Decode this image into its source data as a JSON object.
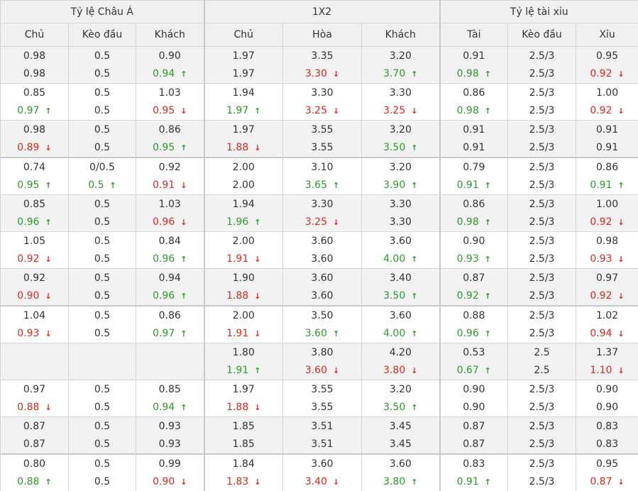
{
  "headers": {
    "groups": [
      "Tỷ lệ Châu Á",
      "1X2",
      "Tỷ lệ tài xỉu"
    ],
    "columns": [
      "Chủ",
      "Kèo đầu",
      "Khách",
      "Chủ",
      "Hòa",
      "Khách",
      "Tài",
      "Kèo đầu",
      "Xỉu"
    ]
  },
  "colors": {
    "up": "#2a9d2a",
    "down": "#e0281e",
    "header_bg": "#f0f0f0",
    "alt_row_bg": "#f2f2f2",
    "border": "#d4d4d4"
  },
  "icons": {
    "up": "arrow-up-icon",
    "down": "arrow-down-icon"
  },
  "rows": [
    {
      "top": [
        "0.98",
        "0.5",
        "0.90",
        "1.97",
        "3.35",
        "3.20",
        "0.91",
        "2.5/3",
        "0.95"
      ],
      "bottom": [
        {
          "v": "0.98"
        },
        {
          "v": "0.5"
        },
        {
          "v": "0.94",
          "d": "up"
        },
        {
          "v": "1.97"
        },
        {
          "v": "3.30",
          "d": "down"
        },
        {
          "v": "3.70",
          "d": "up"
        },
        {
          "v": "0.98",
          "d": "up"
        },
        {
          "v": "2.5/3"
        },
        {
          "v": "0.92",
          "d": "down"
        }
      ]
    },
    {
      "top": [
        "0.85",
        "0.5",
        "1.03",
        "1.94",
        "3.30",
        "3.30",
        "0.86",
        "2.5/3",
        "1.00"
      ],
      "bottom": [
        {
          "v": "0.97",
          "d": "up"
        },
        {
          "v": "0.5"
        },
        {
          "v": "0.95",
          "d": "down"
        },
        {
          "v": "1.97",
          "d": "up"
        },
        {
          "v": "3.25",
          "d": "down"
        },
        {
          "v": "3.25",
          "d": "down"
        },
        {
          "v": "0.98",
          "d": "up"
        },
        {
          "v": "2.5/3"
        },
        {
          "v": "0.92",
          "d": "down"
        }
      ]
    },
    {
      "top": [
        "0.98",
        "0.5",
        "0.86",
        "1.97",
        "3.55",
        "3.20",
        "0.91",
        "2.5/3",
        "0.91"
      ],
      "bottom": [
        {
          "v": "0.89",
          "d": "down"
        },
        {
          "v": "0.5"
        },
        {
          "v": "0.95",
          "d": "up"
        },
        {
          "v": "1.88",
          "d": "down"
        },
        {
          "v": "3.55"
        },
        {
          "v": "3.50",
          "d": "up"
        },
        {
          "v": "0.91"
        },
        {
          "v": "2.5/3"
        },
        {
          "v": "0.91"
        }
      ]
    },
    {
      "top": [
        "0.74",
        "0/0.5",
        "0.92",
        "2.00",
        "3.10",
        "3.20",
        "0.79",
        "2.5/3",
        "0.86"
      ],
      "bottom": [
        {
          "v": "0.95",
          "d": "up"
        },
        {
          "v": "0.5",
          "d": "up"
        },
        {
          "v": "0.91",
          "d": "down"
        },
        {
          "v": "2.00"
        },
        {
          "v": "3.65",
          "d": "up"
        },
        {
          "v": "3.90",
          "d": "up"
        },
        {
          "v": "0.91",
          "d": "up"
        },
        {
          "v": "2.5/3"
        },
        {
          "v": "0.91",
          "d": "up"
        }
      ]
    },
    {
      "top": [
        "0.85",
        "0.5",
        "1.03",
        "1.94",
        "3.30",
        "3.30",
        "0.86",
        "2.5/3",
        "1.00"
      ],
      "bottom": [
        {
          "v": "0.96",
          "d": "up"
        },
        {
          "v": "0.5"
        },
        {
          "v": "0.96",
          "d": "down"
        },
        {
          "v": "1.96",
          "d": "up"
        },
        {
          "v": "3.25",
          "d": "down"
        },
        {
          "v": "3.30"
        },
        {
          "v": "0.98",
          "d": "up"
        },
        {
          "v": "2.5/3"
        },
        {
          "v": "0.92",
          "d": "down"
        }
      ]
    },
    {
      "top": [
        "1.05",
        "0.5",
        "0.84",
        "2.00",
        "3.60",
        "3.60",
        "0.90",
        "2.5/3",
        "0.98"
      ],
      "bottom": [
        {
          "v": "0.92",
          "d": "down"
        },
        {
          "v": "0.5"
        },
        {
          "v": "0.96",
          "d": "up"
        },
        {
          "v": "1.91",
          "d": "down"
        },
        {
          "v": "3.60"
        },
        {
          "v": "4.00",
          "d": "up"
        },
        {
          "v": "0.93",
          "d": "up"
        },
        {
          "v": "2.5/3"
        },
        {
          "v": "0.93",
          "d": "down"
        }
      ]
    },
    {
      "top": [
        "0.92",
        "0.5",
        "0.94",
        "1.90",
        "3.60",
        "3.40",
        "0.87",
        "2.5/3",
        "0.97"
      ],
      "bottom": [
        {
          "v": "0.90",
          "d": "down"
        },
        {
          "v": "0.5"
        },
        {
          "v": "0.96",
          "d": "up"
        },
        {
          "v": "1.88",
          "d": "down"
        },
        {
          "v": "3.60"
        },
        {
          "v": "3.50",
          "d": "up"
        },
        {
          "v": "0.92",
          "d": "up"
        },
        {
          "v": "2.5/3"
        },
        {
          "v": "0.92",
          "d": "down"
        }
      ]
    },
    {
      "top": [
        "1.04",
        "0.5",
        "0.86",
        "2.00",
        "3.50",
        "3.60",
        "0.88",
        "2.5/3",
        "1.02"
      ],
      "bottom": [
        {
          "v": "0.93",
          "d": "down"
        },
        {
          "v": "0.5"
        },
        {
          "v": "0.97",
          "d": "up"
        },
        {
          "v": "1.91",
          "d": "down"
        },
        {
          "v": "3.60",
          "d": "up"
        },
        {
          "v": "4.00",
          "d": "up"
        },
        {
          "v": "0.96",
          "d": "up"
        },
        {
          "v": "2.5/3"
        },
        {
          "v": "0.94",
          "d": "down"
        }
      ]
    },
    {
      "top": [
        "",
        "",
        "",
        "1.80",
        "3.80",
        "4.20",
        "0.53",
        "2.5",
        "1.37"
      ],
      "bottom": [
        {
          "v": ""
        },
        {
          "v": ""
        },
        {
          "v": ""
        },
        {
          "v": "1.91",
          "d": "up"
        },
        {
          "v": "3.60",
          "d": "down"
        },
        {
          "v": "3.80",
          "d": "down"
        },
        {
          "v": "0.67",
          "d": "up"
        },
        {
          "v": "2.5"
        },
        {
          "v": "1.10",
          "d": "down"
        }
      ]
    },
    {
      "top": [
        "0.97",
        "0.5",
        "0.85",
        "1.97",
        "3.55",
        "3.20",
        "0.90",
        "2.5/3",
        "0.90"
      ],
      "bottom": [
        {
          "v": "0.88",
          "d": "down"
        },
        {
          "v": "0.5"
        },
        {
          "v": "0.94",
          "d": "up"
        },
        {
          "v": "1.88",
          "d": "down"
        },
        {
          "v": "3.55"
        },
        {
          "v": "3.50",
          "d": "up"
        },
        {
          "v": "0.90"
        },
        {
          "v": "2.5/3"
        },
        {
          "v": "0.90"
        }
      ]
    },
    {
      "top": [
        "0.87",
        "0.5",
        "0.93",
        "1.85",
        "3.51",
        "3.45",
        "0.87",
        "2.5/3",
        "0.83"
      ],
      "bottom": [
        {
          "v": "0.87"
        },
        {
          "v": "0.5"
        },
        {
          "v": "0.93"
        },
        {
          "v": "1.85"
        },
        {
          "v": "3.51"
        },
        {
          "v": "3.45"
        },
        {
          "v": "0.87"
        },
        {
          "v": "2.5/3"
        },
        {
          "v": "0.83"
        }
      ]
    },
    {
      "top": [
        "0.80",
        "0.5",
        "0.99",
        "1.84",
        "3.60",
        "3.60",
        "0.83",
        "2.5/3",
        "0.95"
      ],
      "bottom": [
        {
          "v": "0.88",
          "d": "up"
        },
        {
          "v": "0.5"
        },
        {
          "v": "0.90",
          "d": "down"
        },
        {
          "v": "1.83",
          "d": "down"
        },
        {
          "v": "3.40",
          "d": "down"
        },
        {
          "v": "3.80",
          "d": "up"
        },
        {
          "v": "0.91",
          "d": "up"
        },
        {
          "v": "2.5/3"
        },
        {
          "v": "0.87",
          "d": "down"
        }
      ]
    }
  ]
}
